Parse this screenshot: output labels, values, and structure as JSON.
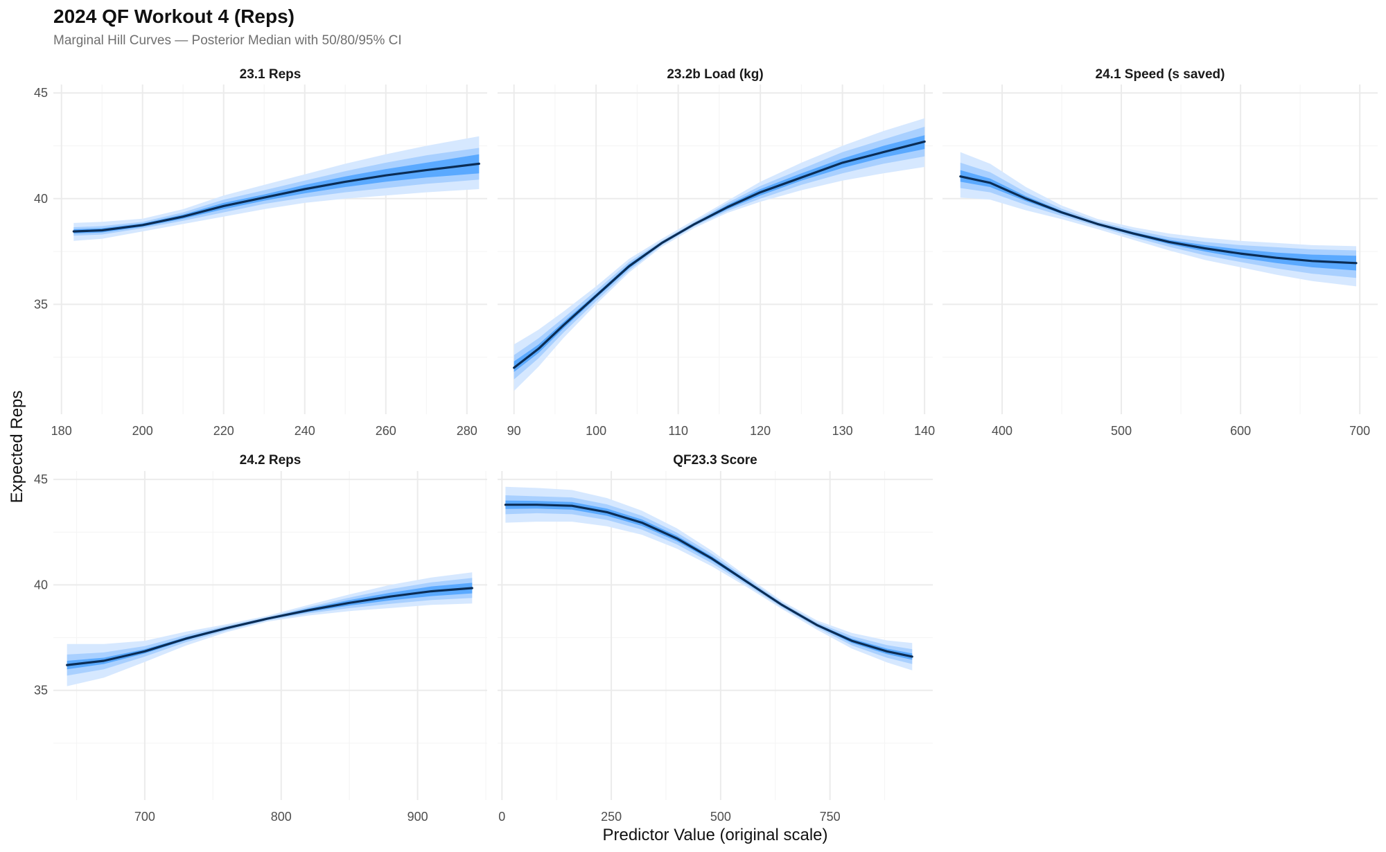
{
  "title": "2024 QF Workout 4 (Reps)",
  "subtitle": "Marginal Hill Curves — Posterior Median with 50/80/95% CI",
  "colors": {
    "band95": "#d6e8ff",
    "band80": "#a9d0ff",
    "band50": "#5aa9ff",
    "median": "#0b2d55",
    "grid_major": "#ebebeb",
    "grid_minor": "#f5f5f5"
  },
  "chart_data": {
    "type": "line",
    "xlabel": "Predictor Value (original scale)",
    "ylabel": "Expected Reps",
    "ylim": [
      29.8,
      45.4
    ],
    "y_ticks": [
      35,
      40,
      45
    ],
    "y_minor": [
      32.5,
      37.5,
      42.5
    ],
    "panels": [
      {
        "label": "23.1 Reps",
        "xlim": [
          178,
          285
        ],
        "x_ticks": [
          180,
          200,
          220,
          240,
          260,
          280
        ],
        "x_minor": [
          190,
          210,
          230,
          250,
          270
        ],
        "series": {
          "x": [
            183,
            190,
            200,
            210,
            220,
            230,
            240,
            250,
            260,
            270,
            283
          ],
          "median": [
            38.45,
            38.5,
            38.75,
            39.15,
            39.65,
            40.05,
            40.45,
            40.8,
            41.1,
            41.35,
            41.65
          ],
          "lo50": [
            38.35,
            38.4,
            38.67,
            39.05,
            39.5,
            39.9,
            40.25,
            40.55,
            40.8,
            41.0,
            41.2
          ],
          "hi50": [
            38.55,
            38.6,
            38.83,
            39.25,
            39.8,
            40.2,
            40.65,
            41.05,
            41.4,
            41.7,
            42.1
          ],
          "lo80": [
            38.25,
            38.3,
            38.6,
            38.95,
            39.35,
            39.75,
            40.05,
            40.3,
            40.5,
            40.7,
            40.9
          ],
          "hi80": [
            38.65,
            38.7,
            38.9,
            39.35,
            39.95,
            40.4,
            40.85,
            41.3,
            41.7,
            42.05,
            42.4
          ],
          "lo95": [
            38.0,
            38.1,
            38.45,
            38.8,
            39.15,
            39.5,
            39.8,
            40.0,
            40.15,
            40.3,
            40.45
          ],
          "hi95": [
            38.85,
            38.9,
            39.05,
            39.5,
            40.15,
            40.65,
            41.15,
            41.65,
            42.1,
            42.5,
            42.95
          ]
        }
      },
      {
        "label": "23.2b Load (kg)",
        "xlim": [
          88,
          141
        ],
        "x_ticks": [
          90,
          100,
          110,
          120,
          130,
          140
        ],
        "x_minor": [
          95,
          105,
          115,
          125,
          135
        ],
        "series": {
          "x": [
            90,
            93,
            96,
            100,
            104,
            108,
            112,
            116,
            120,
            125,
            130,
            135,
            140
          ],
          "median": [
            32.0,
            32.9,
            34.0,
            35.4,
            36.8,
            37.9,
            38.8,
            39.6,
            40.3,
            41.0,
            41.7,
            42.2,
            42.7
          ],
          "lo50": [
            31.8,
            32.7,
            33.85,
            35.3,
            36.7,
            37.85,
            38.75,
            39.5,
            40.15,
            40.85,
            41.45,
            41.95,
            42.35
          ],
          "hi50": [
            32.3,
            33.1,
            34.15,
            35.5,
            36.9,
            37.95,
            38.85,
            39.7,
            40.45,
            41.2,
            41.9,
            42.5,
            43.0
          ],
          "lo80": [
            31.45,
            32.45,
            33.65,
            35.15,
            36.6,
            37.8,
            38.7,
            39.42,
            40.0,
            40.65,
            41.2,
            41.65,
            42.0
          ],
          "hi80": [
            32.6,
            33.4,
            34.35,
            35.65,
            37.0,
            38.0,
            38.9,
            39.8,
            40.6,
            41.4,
            42.2,
            42.8,
            43.4
          ],
          "lo95": [
            30.9,
            32.05,
            33.4,
            35.0,
            36.5,
            37.72,
            38.62,
            39.33,
            39.85,
            40.4,
            40.85,
            41.2,
            41.5
          ],
          "hi95": [
            33.1,
            33.8,
            34.65,
            35.85,
            37.15,
            38.1,
            39.0,
            39.9,
            40.8,
            41.7,
            42.5,
            43.2,
            43.8
          ]
        }
      },
      {
        "label": "24.1 Speed (s saved)",
        "xlim": [
          350,
          715
        ],
        "x_ticks": [
          400,
          500,
          600,
          700
        ],
        "x_minor": [
          450,
          550,
          650
        ],
        "series": {
          "x": [
            365,
            390,
            420,
            450,
            480,
            510,
            540,
            570,
            600,
            630,
            660,
            697
          ],
          "median": [
            41.05,
            40.75,
            40.0,
            39.35,
            38.8,
            38.35,
            37.95,
            37.65,
            37.4,
            37.2,
            37.05,
            36.95
          ],
          "lo50": [
            40.8,
            40.55,
            39.88,
            39.28,
            38.75,
            38.28,
            37.85,
            37.5,
            37.2,
            36.95,
            36.75,
            36.6
          ],
          "hi50": [
            41.35,
            40.95,
            40.12,
            39.42,
            38.85,
            38.42,
            38.05,
            37.8,
            37.6,
            37.45,
            37.35,
            37.3
          ],
          "lo80": [
            40.5,
            40.3,
            39.7,
            39.18,
            38.68,
            38.18,
            37.72,
            37.32,
            37.0,
            36.7,
            36.45,
            36.25
          ],
          "hi80": [
            41.7,
            41.25,
            40.3,
            39.52,
            38.92,
            38.52,
            38.18,
            37.95,
            37.8,
            37.7,
            37.6,
            37.55
          ],
          "lo95": [
            40.05,
            39.95,
            39.45,
            39.03,
            38.56,
            38.05,
            37.55,
            37.1,
            36.75,
            36.4,
            36.1,
            35.85
          ],
          "hi95": [
            42.2,
            41.65,
            40.55,
            39.67,
            39.04,
            38.65,
            38.35,
            38.15,
            38.0,
            37.9,
            37.8,
            37.75
          ]
        }
      },
      {
        "label": "24.2 Reps",
        "xlim": [
          633,
          951
        ],
        "x_ticks": [
          700,
          800,
          900
        ],
        "x_minor": [
          650,
          750,
          850,
          950
        ],
        "series": {
          "x": [
            643,
            670,
            700,
            730,
            760,
            790,
            820,
            850,
            880,
            910,
            940
          ],
          "median": [
            36.2,
            36.4,
            36.85,
            37.45,
            37.95,
            38.4,
            38.8,
            39.15,
            39.45,
            39.7,
            39.85
          ],
          "lo50": [
            36.0,
            36.25,
            36.75,
            37.38,
            37.9,
            38.36,
            38.72,
            39.02,
            39.27,
            39.47,
            39.6
          ],
          "hi50": [
            36.4,
            36.55,
            36.95,
            37.52,
            38.0,
            38.44,
            38.88,
            39.28,
            39.63,
            39.93,
            40.1
          ],
          "lo80": [
            35.7,
            36.0,
            36.6,
            37.28,
            37.84,
            38.32,
            38.65,
            38.9,
            39.1,
            39.28,
            39.38
          ],
          "hi80": [
            36.7,
            36.8,
            37.1,
            37.62,
            38.06,
            38.48,
            38.95,
            39.4,
            39.8,
            40.12,
            40.33
          ],
          "lo95": [
            35.2,
            35.6,
            36.35,
            37.12,
            37.76,
            38.26,
            38.55,
            38.76,
            38.9,
            39.05,
            39.12
          ],
          "hi95": [
            37.2,
            37.2,
            37.35,
            37.78,
            38.14,
            38.54,
            39.05,
            39.55,
            40.0,
            40.35,
            40.6
          ]
        }
      },
      {
        "label": "QF23.3 Score",
        "xlim": [
          -10,
          985
        ],
        "x_ticks": [
          0,
          250,
          500,
          750
        ],
        "x_minor": [
          125,
          375,
          625,
          875
        ],
        "series": {
          "x": [
            8,
            80,
            160,
            240,
            320,
            400,
            480,
            560,
            640,
            720,
            800,
            880,
            938
          ],
          "median": [
            43.8,
            43.8,
            43.75,
            43.45,
            42.95,
            42.2,
            41.25,
            40.15,
            39.05,
            38.1,
            37.35,
            36.85,
            36.6
          ],
          "lo50": [
            43.6,
            43.62,
            43.57,
            43.28,
            42.8,
            42.07,
            41.15,
            40.08,
            39.0,
            38.05,
            37.25,
            36.72,
            36.45
          ],
          "hi50": [
            44.0,
            43.98,
            43.93,
            43.62,
            43.1,
            42.33,
            41.35,
            40.22,
            39.1,
            38.15,
            37.45,
            36.98,
            36.75
          ],
          "lo80": [
            43.35,
            43.4,
            43.35,
            43.08,
            42.62,
            41.92,
            41.03,
            40.0,
            38.94,
            37.98,
            37.13,
            36.55,
            36.25
          ],
          "hi80": [
            44.25,
            44.2,
            44.15,
            43.82,
            43.28,
            42.48,
            41.47,
            40.3,
            39.16,
            38.22,
            37.57,
            37.15,
            36.95
          ],
          "lo95": [
            42.95,
            43.0,
            43.0,
            42.78,
            42.38,
            41.72,
            40.88,
            39.9,
            38.86,
            37.88,
            36.98,
            36.33,
            35.95
          ],
          "hi95": [
            44.65,
            44.6,
            44.5,
            44.12,
            43.52,
            42.68,
            41.62,
            40.4,
            39.24,
            38.32,
            37.72,
            37.37,
            37.25
          ]
        }
      }
    ]
  }
}
